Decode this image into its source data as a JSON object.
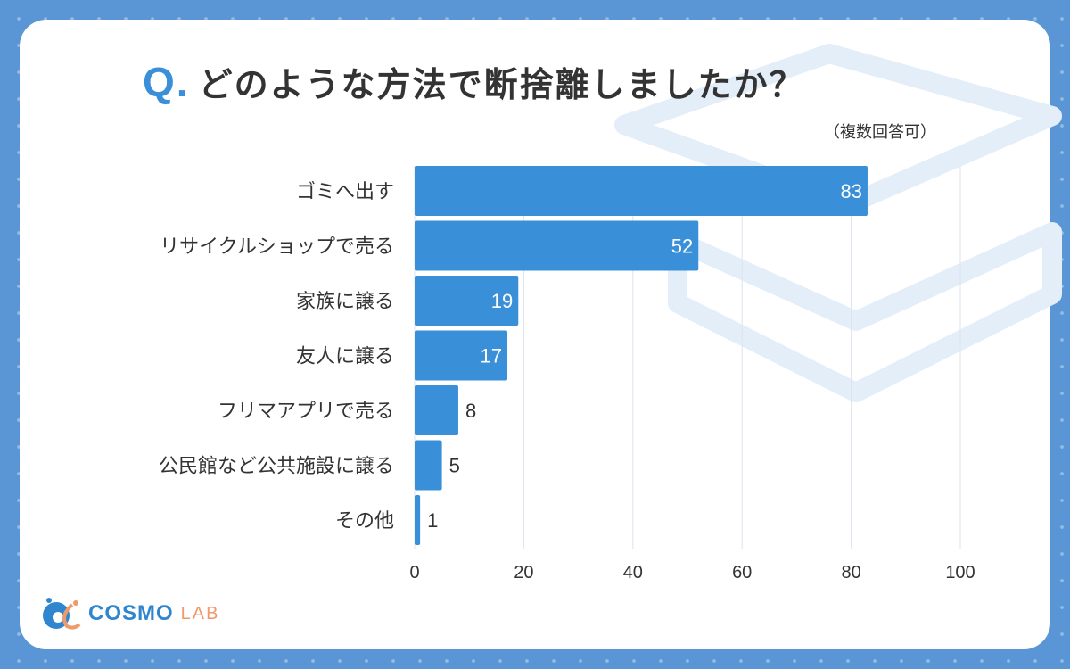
{
  "title": {
    "q": "Q.",
    "text": "どのような方法で断捨離しましたか？",
    "note": "（複数回答可）"
  },
  "logo": {
    "main": "COSMO",
    "sub": "LAB"
  },
  "colors": {
    "bar": "#3a8fd9",
    "background": "#5a96d6",
    "accent": "#3a8fd9",
    "logo_orange": "#ee9a6a"
  },
  "chart_data": {
    "type": "bar",
    "orientation": "horizontal",
    "categories": [
      "ゴミへ出す",
      "リサイクルショップで売る",
      "家族に譲る",
      "友人に譲る",
      "フリマアプリで売る",
      "公民館など公共施設に譲る",
      "その他"
    ],
    "values": [
      83,
      52,
      19,
      17,
      8,
      5,
      1
    ],
    "xlim": [
      0,
      100
    ],
    "xticks": [
      0,
      20,
      40,
      60,
      80,
      100
    ],
    "grid": true
  }
}
